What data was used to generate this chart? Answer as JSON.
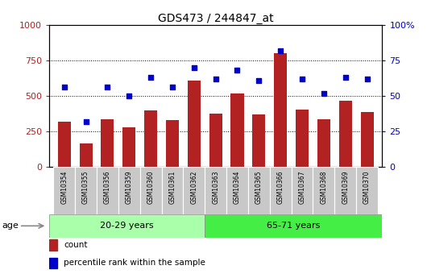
{
  "title": "GDS473 / 244847_at",
  "samples": [
    "GSM10354",
    "GSM10355",
    "GSM10356",
    "GSM10359",
    "GSM10360",
    "GSM10361",
    "GSM10362",
    "GSM10363",
    "GSM10364",
    "GSM10365",
    "GSM10366",
    "GSM10367",
    "GSM10368",
    "GSM10369",
    "GSM10370"
  ],
  "counts": [
    320,
    165,
    335,
    280,
    395,
    330,
    610,
    375,
    520,
    370,
    800,
    405,
    335,
    465,
    385
  ],
  "percentiles": [
    56,
    32,
    56,
    50,
    63,
    56,
    70,
    62,
    68,
    61,
    82,
    62,
    52,
    63,
    62
  ],
  "group1_label": "20-29 years",
  "group2_label": "65-71 years",
  "group1_count": 7,
  "group2_count": 8,
  "bar_color": "#b22222",
  "dot_color": "#0000cc",
  "group1_bg": "#aaffaa",
  "group2_bg": "#44ee44",
  "tick_bg": "#c8c8c8",
  "left_ylim": [
    0,
    1000
  ],
  "right_ylim": [
    0,
    100
  ],
  "left_yticks": [
    0,
    250,
    500,
    750,
    1000
  ],
  "right_yticks": [
    0,
    25,
    50,
    75,
    100
  ],
  "right_yticklabels": [
    "0",
    "25",
    "50",
    "75",
    "100%"
  ],
  "legend_count_label": "count",
  "legend_percentile_label": "percentile rank within the sample",
  "age_label": "age"
}
